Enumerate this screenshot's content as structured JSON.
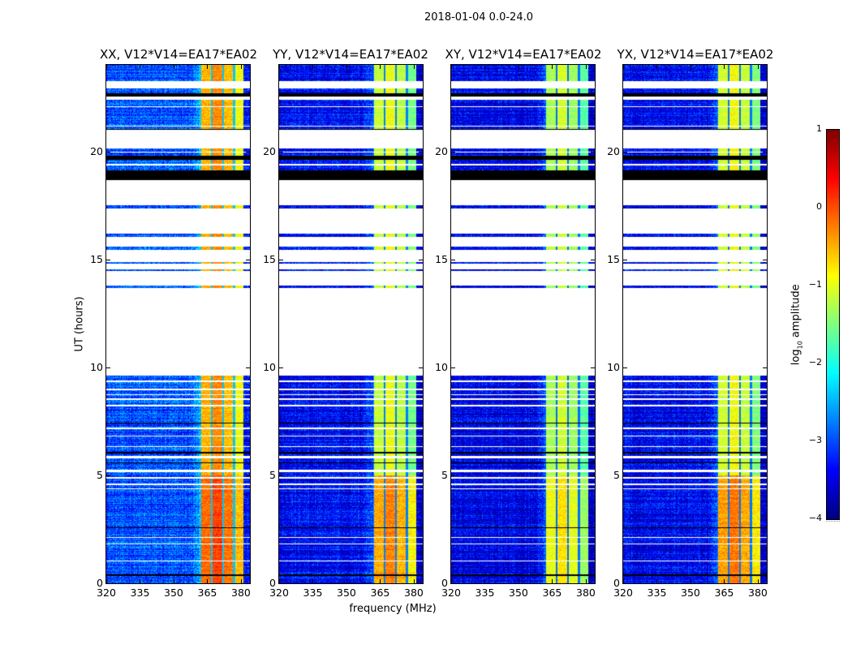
{
  "chart_data": {
    "type": "heatmap",
    "title": "2018-01-04 0.0-24.0",
    "xlabel": "frequency (MHz)",
    "ylabel": "UT (hours)",
    "xlim": [
      320,
      384
    ],
    "ylim": [
      0,
      24
    ],
    "xticks": [
      320,
      335,
      350,
      365,
      380
    ],
    "yticks": [
      0,
      5,
      10,
      15,
      20
    ],
    "colormap": "jet",
    "colorbar": {
      "label_main": "log",
      "label_sub": "10",
      "label_rest": " amplitude",
      "range": [
        -4,
        1
      ],
      "ticks": [
        -4,
        -3,
        -2,
        -1,
        0,
        1
      ]
    },
    "band_range_mhz": [
      362,
      381
    ],
    "band_gaps_mhz": [
      367,
      372,
      377
    ],
    "data_segments_hours": [
      [
        0.0,
        9.6
      ],
      [
        13.67,
        13.8
      ],
      [
        14.46,
        14.53
      ],
      [
        14.8,
        14.87
      ],
      [
        15.45,
        15.6
      ],
      [
        16.05,
        16.2
      ],
      [
        17.35,
        17.5
      ],
      [
        18.65,
        19.1
      ],
      [
        19.1,
        19.6
      ],
      [
        19.6,
        19.8
      ],
      [
        19.8,
        20.15
      ],
      [
        21.0,
        21.3
      ],
      [
        21.3,
        22.4
      ],
      [
        22.55,
        22.7
      ],
      [
        22.7,
        22.9
      ],
      [
        23.24,
        24.0
      ]
    ],
    "black_rows_hours": [
      [
        18.65,
        19.1
      ],
      [
        19.6,
        19.78
      ],
      [
        22.55,
        22.7
      ],
      [
        23.15,
        23.24
      ],
      [
        21.0,
        21.05
      ],
      [
        17.2,
        17.25
      ],
      [
        17.1,
        17.14
      ],
      [
        6.0,
        6.08
      ],
      [
        0.35,
        0.42
      ],
      [
        2.55,
        2.6
      ],
      [
        7.4,
        7.45
      ],
      [
        5.55,
        5.6
      ]
    ],
    "white_rows_hours": [
      [
        9.3,
        9.38
      ],
      [
        8.95,
        9.02
      ],
      [
        8.7,
        8.75
      ],
      [
        8.5,
        8.55
      ],
      [
        8.2,
        8.26
      ],
      [
        7.15,
        7.2
      ],
      [
        6.8,
        6.85
      ],
      [
        6.3,
        6.35
      ],
      [
        5.8,
        5.9
      ],
      [
        5.15,
        5.25
      ],
      [
        4.85,
        4.92
      ],
      [
        4.55,
        4.62
      ],
      [
        4.35,
        4.4
      ],
      [
        2.1,
        2.15
      ],
      [
        1.8,
        1.85
      ],
      [
        1.0,
        1.05
      ],
      [
        21.15,
        21.2
      ],
      [
        22.05,
        22.1
      ],
      [
        19.95,
        20.0
      ],
      [
        19.35,
        19.4
      ]
    ],
    "panels": [
      {
        "title": "XX, V12*V14=EA17*EA02",
        "background_level": -3.0,
        "band_level": -0.55,
        "band_low_hours_level": -0.2
      },
      {
        "title": "YY, V12*V14=EA17*EA02",
        "background_level": -3.35,
        "band_level": -1.2,
        "band_low_hours_level": -0.5
      },
      {
        "title": "XY, V12*V14=EA17*EA02",
        "background_level": -3.45,
        "band_level": -1.35,
        "band_low_hours_level": -1.0
      },
      {
        "title": "YX, V12*V14=EA17*EA02",
        "background_level": -3.4,
        "band_level": -1.15,
        "band_low_hours_level": -0.45
      }
    ]
  }
}
